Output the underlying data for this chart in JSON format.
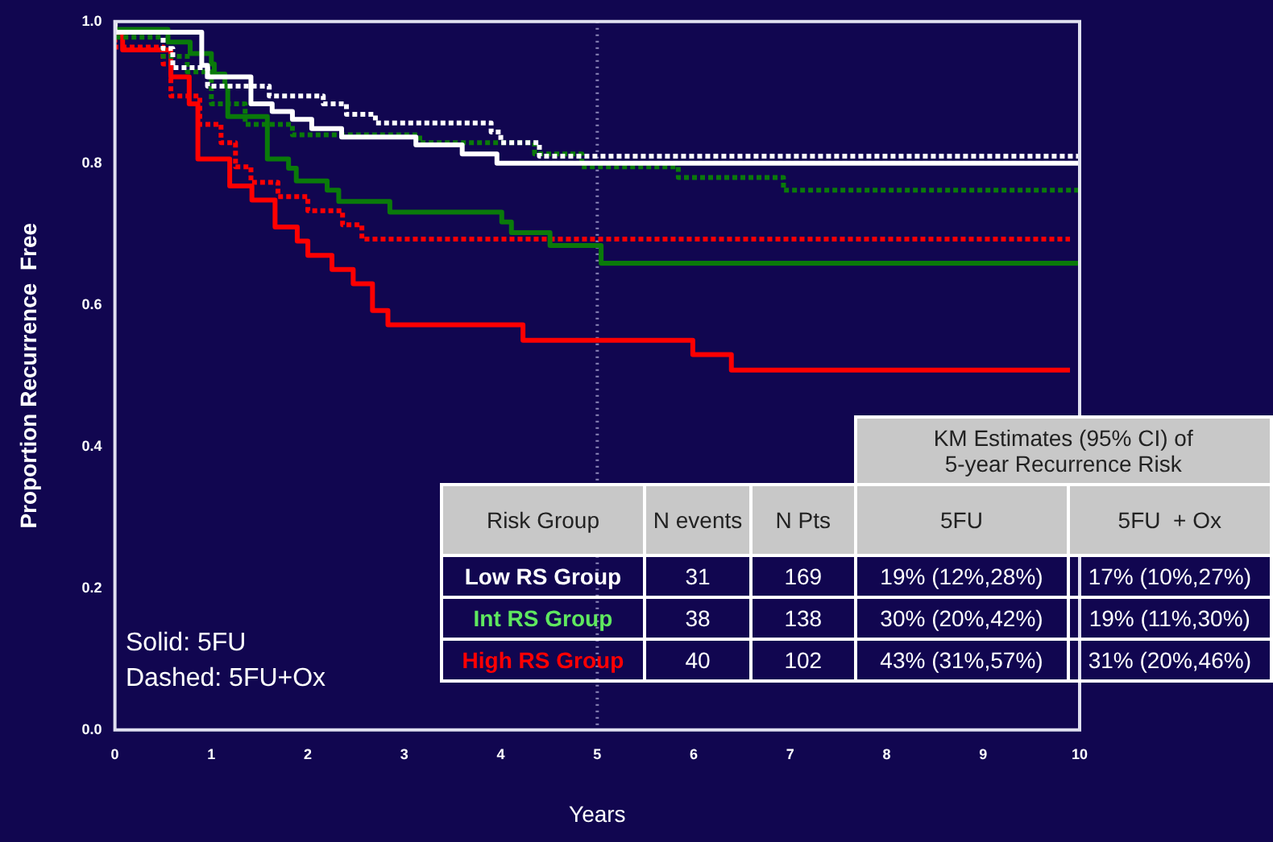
{
  "chart_data": {
    "type": "step",
    "xlabel": "Years",
    "ylabel": "Proportion Recurrence  Free",
    "xlim": [
      0,
      10
    ],
    "xticks": [
      0,
      1,
      2,
      3,
      4,
      5,
      6,
      7,
      8,
      9,
      10
    ],
    "ylim": [
      0,
      1
    ],
    "yticks": [
      {
        "value": 0,
        "label": "0.0"
      },
      0.2,
      0.4,
      0.6,
      0.8,
      {
        "value": 1,
        "label": "1.0"
      }
    ],
    "grid": false,
    "legend": false,
    "ref_lines": [
      {
        "axis": "x",
        "value": 5,
        "color": "#8c86b8",
        "line_style": "dotted"
      }
    ],
    "series": [
      {
        "color": "#ffffff",
        "line_style": "solid",
        "x": [
          0,
          0.9,
          0.96,
          1.41,
          1.63,
          1.84,
          2.04,
          2.35,
          3.12,
          3.6,
          3.96,
          6.73,
          10
        ],
        "values": [
          1.0,
          0.985,
          0.938,
          0.922,
          0.884,
          0.873,
          0.862,
          0.849,
          0.837,
          0.826,
          0.813,
          0.8,
          0.8
        ]
      },
      {
        "color": "#ffffff",
        "line_style": "dashed",
        "x": [
          0,
          0.5,
          0.6,
          0.96,
          1.6,
          2.16,
          2.4,
          2.7,
          3.9,
          4.0,
          4.4,
          8.2,
          10
        ],
        "values": [
          1.0,
          0.985,
          0.962,
          0.935,
          0.909,
          0.895,
          0.884,
          0.869,
          0.857,
          0.844,
          0.829,
          0.81,
          0.81
        ]
      },
      {
        "color": "#0a7a0a",
        "line_style": "solid",
        "x": [
          0,
          0.55,
          0.78,
          1.0,
          1.03,
          1.14,
          1.17,
          1.58,
          1.8,
          1.88,
          2.2,
          2.32,
          2.85,
          4.01,
          4.11,
          4.51,
          5.04,
          8.5,
          10
        ],
        "values": [
          1.0,
          0.989,
          0.971,
          0.955,
          0.94,
          0.926,
          0.909,
          0.866,
          0.806,
          0.793,
          0.775,
          0.762,
          0.746,
          0.731,
          0.717,
          0.702,
          0.684,
          0.659,
          0.659
        ]
      },
      {
        "color": "#0a7a0a",
        "line_style": "dashed",
        "x": [
          0,
          0.5,
          0.75,
          1.0,
          1.35,
          1.84,
          3.16,
          4.35,
          4.84,
          5.84,
          6.93,
          7.53,
          10
        ],
        "values": [
          1.0,
          0.978,
          0.951,
          0.929,
          0.884,
          0.855,
          0.84,
          0.829,
          0.813,
          0.795,
          0.78,
          0.762,
          0.762
        ]
      },
      {
        "color": "#ff0000",
        "line_style": "solid",
        "x": [
          0,
          0.08,
          0.58,
          0.77,
          0.86,
          1.19,
          1.42,
          1.66,
          1.89,
          2.0,
          2.25,
          2.47,
          2.67,
          2.83,
          4.23,
          5.99,
          6.39,
          6.94,
          9.9
        ],
        "values": [
          1.0,
          0.98,
          0.96,
          0.922,
          0.884,
          0.806,
          0.768,
          0.748,
          0.71,
          0.69,
          0.67,
          0.65,
          0.63,
          0.592,
          0.572,
          0.55,
          0.53,
          0.508,
          0.508
        ]
      },
      {
        "color": "#ff0000",
        "line_style": "dashed",
        "x": [
          0,
          0.5,
          0.58,
          0.88,
          1.1,
          1.25,
          1.41,
          1.69,
          2.0,
          2.36,
          2.56,
          3.66,
          9.9
        ],
        "values": [
          1.0,
          0.964,
          0.94,
          0.895,
          0.855,
          0.829,
          0.795,
          0.773,
          0.753,
          0.733,
          0.713,
          0.693,
          0.693
        ]
      }
    ],
    "annotations": [
      "Solid: 5FU",
      "Dashed: 5FU+Ox",
      "KM Estimates (95% CI) of 5-year Recurrence Risk",
      "Risk Group",
      "N events",
      "N Pts",
      "5FU",
      "5FU  + Ox",
      "Low RS Group",
      "31",
      "169",
      "19% (12%,28%)",
      "17% (10%,27%)",
      "Int RS Group",
      "38",
      "138",
      "30% (20%,42%)",
      "19% (11%,30%)",
      "High RS Group",
      "40",
      "102",
      "43% (31%,57%)",
      "31% (20%,46%)"
    ]
  }
}
